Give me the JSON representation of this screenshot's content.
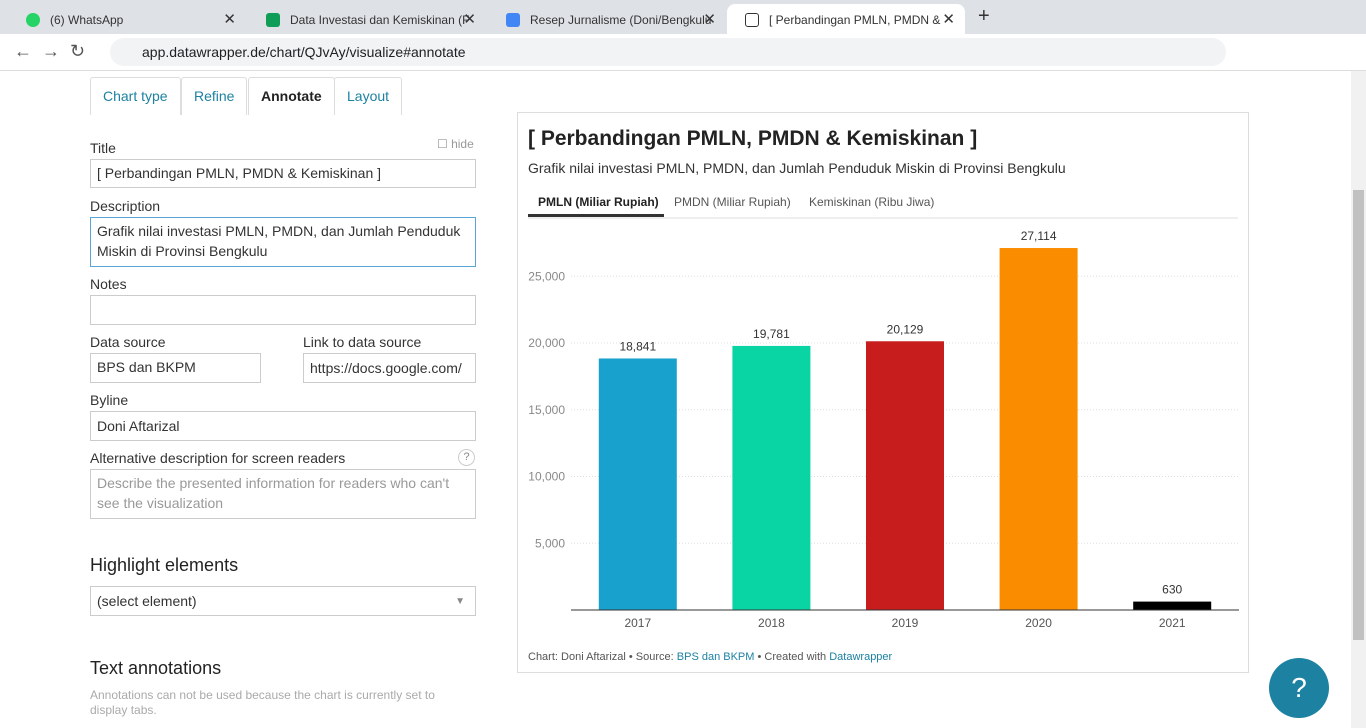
{
  "browser": {
    "tabs": [
      "(6) WhatsApp",
      "Data Investasi dan Kemiskinan (F",
      "Resep Jurnalisme (Doni/Bengkulu",
      "[ Perbandingan PMLN, PMDN & "
    ],
    "url": "app.datawrapper.de/chart/QJvAy/visualize#annotate"
  },
  "editor": {
    "tabs": [
      "Chart type",
      "Refine",
      "Annotate",
      "Layout"
    ],
    "title_label": "Title",
    "hide": "hide",
    "title_value": "[ Perbandingan PMLN, PMDN & Kemiskinan ]",
    "description_label": "Description",
    "description_value": "Grafik nilai investasi PMLN, PMDN, dan Jumlah Penduduk Miskin di Provinsi Bengkulu",
    "notes_label": "Notes",
    "source_label": "Data source",
    "source_value": "BPS dan BKPM",
    "link_label": "Link to data source",
    "link_value": "https://docs.google.com/",
    "byline_label": "Byline",
    "byline_value": "Doni Aftarizal",
    "alt_label": "Alternative description for screen readers",
    "alt_placeholder": "Describe the presented information for readers who can't see the visualization",
    "highlight_heading": "Highlight elements",
    "highlight_select": "(select element)",
    "annotations_heading": "Text annotations",
    "annotations_note": "Annotations can not be used because the chart is currently set to display tabs."
  },
  "preview": {
    "tabs": [
      "PMLN (Miliar Rupiah)",
      "PMDN (Miliar Rupiah)",
      "Kemiskinan (Ribu Jiwa)"
    ],
    "footer": {
      "chart": "Chart: Doni Aftarizal",
      "source": "• Source:",
      "source_link": "BPS dan BKPM",
      "created": "• Created with",
      "created_link": "Datawrapper"
    }
  },
  "chart_data": {
    "type": "bar",
    "title": "[ Perbandingan PMLN, PMDN & Kemiskinan ]",
    "subtitle": "Grafik nilai investasi PMLN, PMDN, dan Jumlah Penduduk Miskin di Provinsi Bengkulu",
    "categories": [
      "2017",
      "2018",
      "2019",
      "2020",
      "2021"
    ],
    "values": [
      18841,
      19781,
      20129,
      27114,
      630
    ],
    "value_labels": [
      "18,841",
      "19,781",
      "20,129",
      "27,114",
      "630"
    ],
    "colors": [
      "#18a1cd",
      "#09d4a4",
      "#c71e1d",
      "#fa8c00",
      "#000000"
    ],
    "ylim": [
      0,
      30000
    ],
    "yticks": [
      {
        "value": 5000,
        "label": "5,000"
      },
      {
        "value": 10000,
        "label": "10,000"
      },
      {
        "value": 15000,
        "label": "15,000"
      },
      {
        "value": 20000,
        "label": "20,000"
      },
      {
        "value": 25000,
        "label": "25,000"
      }
    ],
    "grid": true
  }
}
